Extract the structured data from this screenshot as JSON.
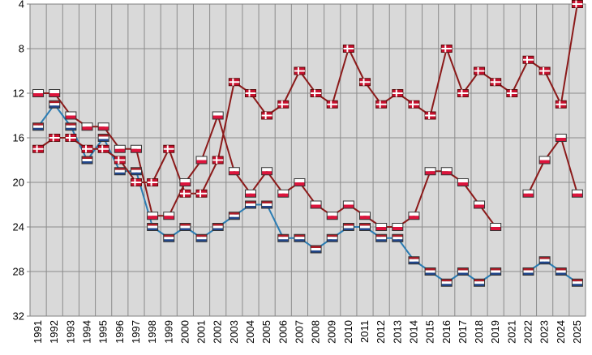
{
  "chart_data": {
    "type": "line",
    "title": "",
    "xlabel": "",
    "ylabel": "",
    "ylim": [
      32,
      4
    ],
    "y_inverted": true,
    "yticks": [
      4,
      8,
      12,
      16,
      20,
      24,
      28,
      32
    ],
    "grid": true,
    "categories": [
      "1991",
      "1992",
      "1993",
      "1994",
      "1995",
      "1996",
      "1997",
      "1998",
      "1999",
      "2000",
      "2001",
      "2002",
      "2003",
      "2004",
      "2005",
      "2006",
      "2007",
      "2008",
      "2009",
      "2010",
      "2011",
      "2012",
      "2013",
      "2014",
      "2015",
      "2016",
      "2017",
      "2018",
      "2019",
      "2021",
      "2022",
      "2023",
      "2024",
      "2025"
    ],
    "series": [
      {
        "name": "Denmark",
        "marker": "denmark-flag",
        "line_color": "#8b1a1a",
        "values": [
          17,
          16,
          16,
          17,
          17,
          18,
          20,
          20,
          17,
          21,
          21,
          18,
          11,
          12,
          14,
          13,
          10,
          12,
          13,
          8,
          11,
          13,
          12,
          13,
          14,
          8,
          12,
          10,
          11,
          12,
          9,
          10,
          13,
          4
        ]
      },
      {
        "name": "Poland",
        "marker": "poland-flag",
        "line_color": "#8b1a1a",
        "values": [
          12,
          12,
          14,
          15,
          15,
          17,
          17,
          23,
          23,
          20,
          18,
          14,
          19,
          21,
          19,
          21,
          20,
          22,
          23,
          22,
          23,
          24,
          24,
          23,
          19,
          19,
          20,
          22,
          24,
          null,
          21,
          18,
          16,
          21
        ]
      },
      {
        "name": "Netherlands",
        "marker": "netherlands-flag",
        "line_color": "#2b7cb3",
        "values": [
          15,
          13,
          15,
          18,
          16,
          19,
          19,
          24,
          25,
          24,
          25,
          24,
          23,
          22,
          22,
          25,
          25,
          26,
          25,
          24,
          24,
          25,
          25,
          27,
          28,
          29,
          28,
          29,
          28,
          null,
          28,
          27,
          28,
          29
        ]
      }
    ]
  }
}
